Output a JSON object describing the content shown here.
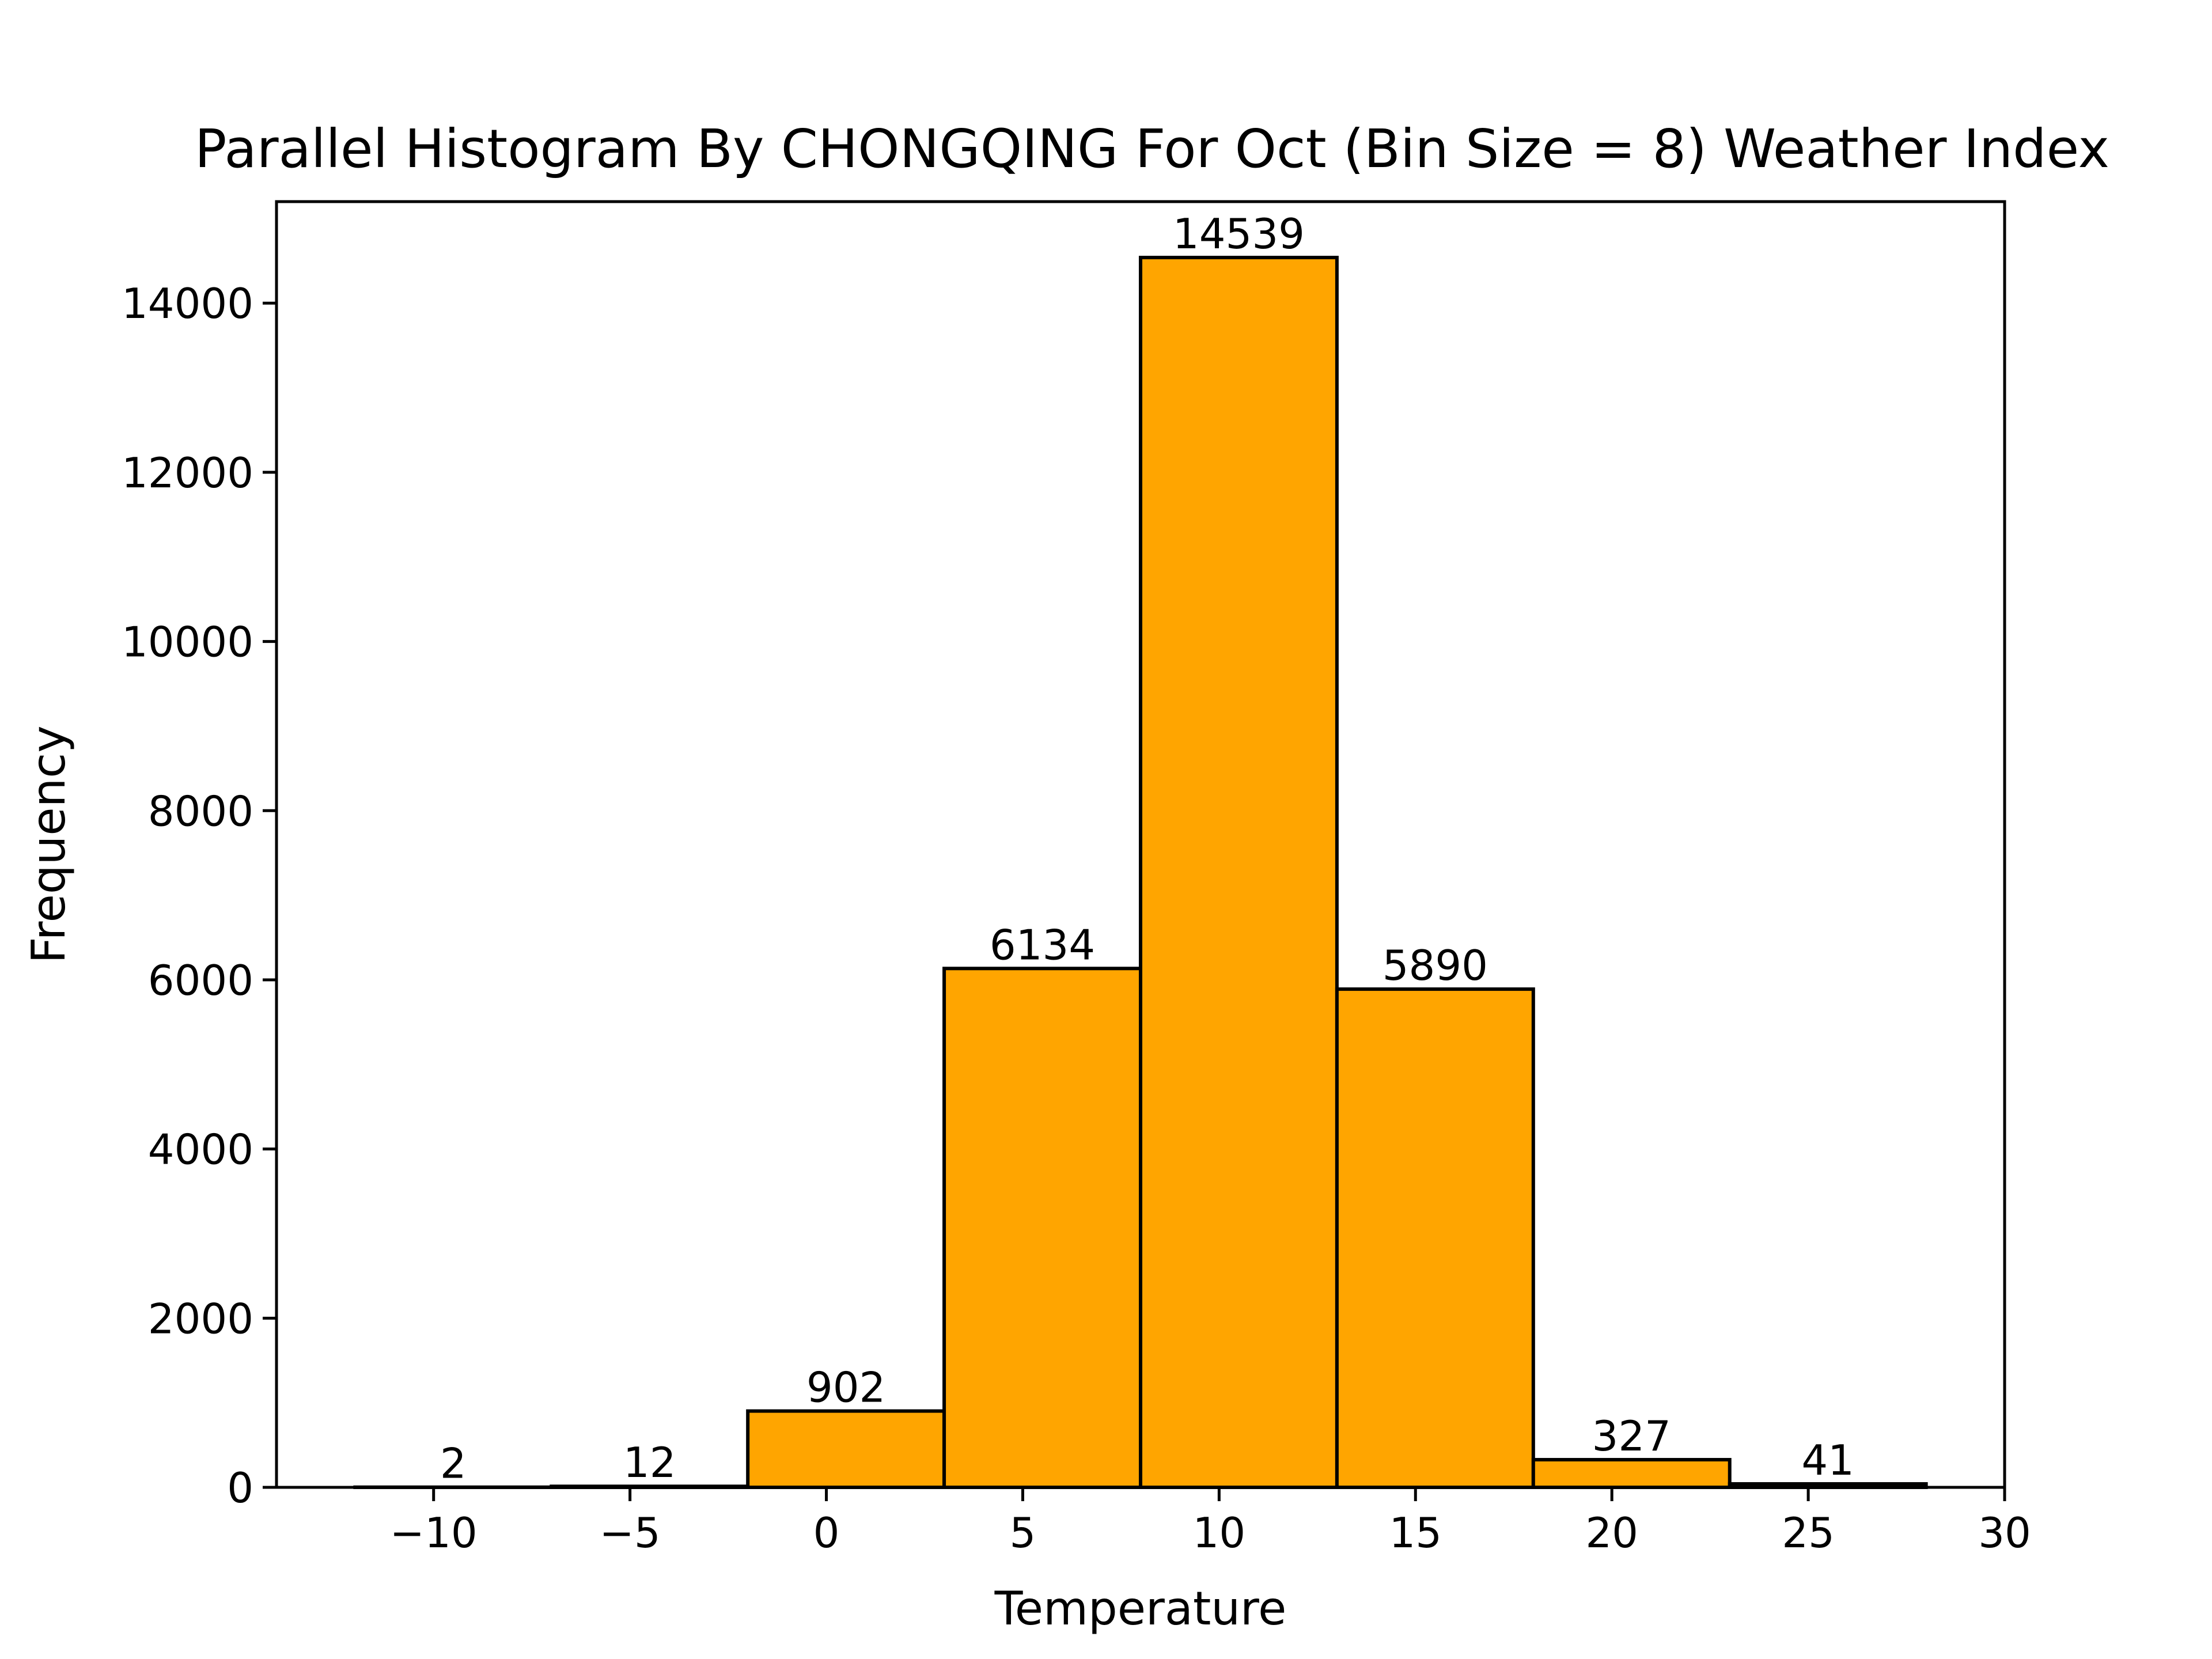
{
  "chart_data": {
    "type": "bar",
    "title": "Parallel Histogram By CHONGQING For Oct (Bin Size = 8) Weather Index",
    "xlabel": "Temperature",
    "ylabel": "Frequency",
    "xlim": [
      -14,
      30
    ],
    "ylim": [
      0,
      15200
    ],
    "xticks": [
      -10,
      -5,
      0,
      5,
      10,
      15,
      20,
      25,
      30
    ],
    "xtick_labels": [
      "−10",
      "−5",
      "0",
      "5",
      "10",
      "15",
      "20",
      "25",
      "30"
    ],
    "yticks": [
      0,
      2000,
      4000,
      6000,
      8000,
      10000,
      12000,
      14000
    ],
    "ytick_labels": [
      "0",
      "2000",
      "4000",
      "6000",
      "8000",
      "10000",
      "12000",
      "14000"
    ],
    "bins": [
      {
        "start": -12,
        "end": -7,
        "value": 2,
        "label": "2"
      },
      {
        "start": -7,
        "end": -2,
        "value": 12,
        "label": "12"
      },
      {
        "start": -2,
        "end": 3,
        "value": 902,
        "label": "902"
      },
      {
        "start": 3,
        "end": 8,
        "value": 6134,
        "label": "6134"
      },
      {
        "start": 8,
        "end": 13,
        "value": 14539,
        "label": "14539"
      },
      {
        "start": 13,
        "end": 18,
        "value": 5890,
        "label": "5890"
      },
      {
        "start": 18,
        "end": 23,
        "value": 327,
        "label": "327"
      },
      {
        "start": 23,
        "end": 28,
        "value": 41,
        "label": "41"
      }
    ],
    "bar_color": "#FFA500",
    "edge_color": "#000000",
    "grid": false,
    "legend": "none"
  }
}
